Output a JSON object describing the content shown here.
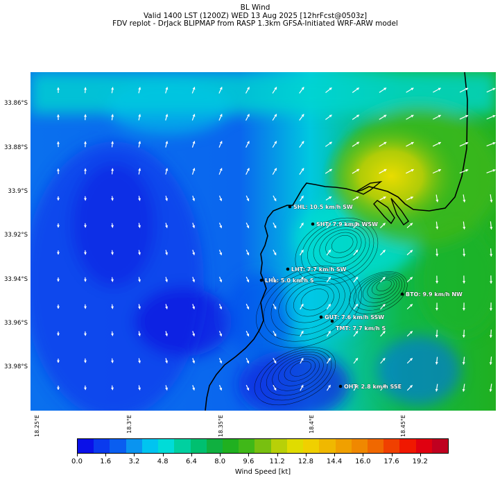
{
  "title": {
    "line1": "BL Wind",
    "line2": "Valid 1400 LST (1200Z) WED 13 Aug 2025 [12hrFcst@0503z]",
    "line3": "FDV replot - DrJack BLIPMAP from RASP 1.3km GFSA-Initiated WRF-ARW model"
  },
  "y_ticks": [
    "33.86°S",
    "33.88°S",
    "33.9°S",
    "33.92°S",
    "33.94°S",
    "33.96°S",
    "33.98°S"
  ],
  "x_ticks": [
    "18.25°E",
    "18.3°E",
    "18.35°E",
    "18.4°E",
    "18.45°E"
  ],
  "stations": [
    {
      "id": "SHL",
      "label": "SHL: 10.5 km/h SW"
    },
    {
      "id": "SHT",
      "label": "SHT: 7.9 km/h WSW"
    },
    {
      "id": "LHT",
      "label": "LHT: 7.7 km/h SW"
    },
    {
      "id": "LHL",
      "label": "LHL: 5.0 km/h S"
    },
    {
      "id": "BTO",
      "label": "BTO: 9.9 km/h NW"
    },
    {
      "id": "GUT",
      "label": "GUT: 7.6 km/h SSW"
    },
    {
      "id": "TMT",
      "label": "TMT: 7.7 km/h S"
    },
    {
      "id": "OHT",
      "label": "OHT: 2.8 km/h SSE"
    }
  ],
  "colorbar": {
    "label": "Wind Speed [kt]",
    "ticks": [
      "0.0",
      "1.6",
      "3.2",
      "4.8",
      "6.4",
      "8.0",
      "9.6",
      "11.2",
      "12.8",
      "14.4",
      "16.0",
      "17.6",
      "19.2"
    ],
    "colors": [
      "#0a10e8",
      "#0a3aee",
      "#0a5ef0",
      "#0a94f0",
      "#00c4f0",
      "#00dcd8",
      "#00d0a0",
      "#00c070",
      "#10b040",
      "#20b020",
      "#40b818",
      "#78c010",
      "#b8d008",
      "#e0dc00",
      "#f0d000",
      "#f0b800",
      "#f0a000",
      "#f08800",
      "#f06800",
      "#f04000",
      "#f01800",
      "#e00010",
      "#c00020"
    ]
  }
}
